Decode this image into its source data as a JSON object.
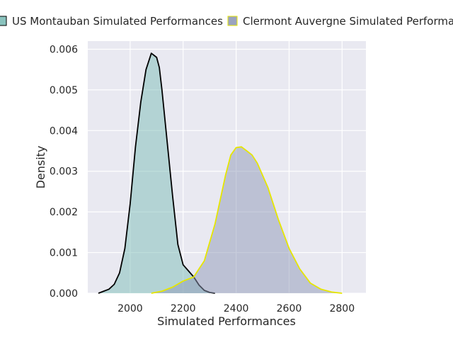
{
  "chart_data": {
    "type": "area",
    "title": "",
    "xlabel": "Simulated Performances",
    "ylabel": "Density",
    "xlim": [
      1840,
      2890
    ],
    "ylim": [
      0,
      0.0062
    ],
    "xticks": [
      2000,
      2200,
      2400,
      2600,
      2800
    ],
    "xtick_labels": [
      "2000",
      "2200",
      "2400",
      "2600",
      "2800"
    ],
    "yticks": [
      0,
      0.001,
      0.002,
      0.003,
      0.004,
      0.005,
      0.006
    ],
    "ytick_labels": [
      "0.000",
      "0.001",
      "0.002",
      "0.003",
      "0.004",
      "0.005",
      "0.006"
    ],
    "grid": true,
    "legend_position": "top",
    "background_color": "#e9e9f1",
    "series": [
      {
        "name": "US Montauban Simulated Performances",
        "fill_color": "#7dbdb7",
        "line_color": "#000000",
        "x": [
          1880,
          1900,
          1920,
          1940,
          1960,
          1980,
          2000,
          2020,
          2040,
          2060,
          2080,
          2090,
          2100,
          2110,
          2120,
          2140,
          2160,
          2180,
          2200,
          2220,
          2240,
          2260,
          2280,
          2300,
          2320
        ],
        "y": [
          0.0,
          5e-05,
          0.0001,
          0.00022,
          0.0005,
          0.0011,
          0.0022,
          0.0036,
          0.0047,
          0.0055,
          0.0059,
          0.00585,
          0.0058,
          0.00555,
          0.005,
          0.0037,
          0.0024,
          0.0012,
          0.0007,
          0.00055,
          0.0004,
          0.0002,
          7e-05,
          2e-05,
          0.0
        ]
      },
      {
        "name": "Clermont Auvergne Simulated Performances",
        "fill_color": "#8f99b8",
        "line_color": "#e6e600",
        "x": [
          2080,
          2120,
          2160,
          2200,
          2240,
          2280,
          2320,
          2360,
          2380,
          2400,
          2420,
          2440,
          2460,
          2480,
          2500,
          2520,
          2540,
          2560,
          2600,
          2640,
          2680,
          2720,
          2760,
          2800
        ],
        "y": [
          0.0,
          5e-05,
          0.00015,
          0.0003,
          0.0004,
          0.0008,
          0.0017,
          0.0029,
          0.0034,
          0.00358,
          0.0036,
          0.0035,
          0.0034,
          0.0032,
          0.0029,
          0.0026,
          0.0022,
          0.0018,
          0.0011,
          0.0006,
          0.00025,
          0.0001,
          3e-05,
          0.0
        ]
      }
    ]
  }
}
